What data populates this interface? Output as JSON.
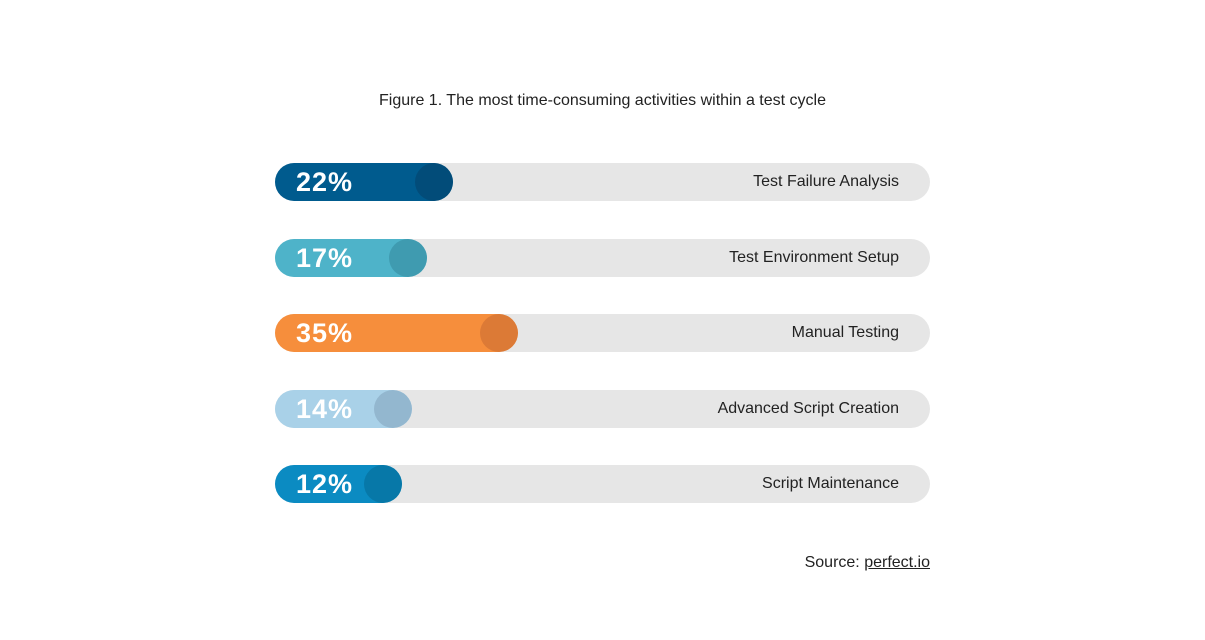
{
  "title": "Figure 1. The most time-consuming activities within a test cycle",
  "chart_data": {
    "type": "bar",
    "orientation": "horizontal",
    "categories": [
      "Test Failure Analysis",
      "Test Environment Setup",
      "Manual Testing",
      "Advanced Script Creation",
      "Script Maintenance"
    ],
    "values": [
      22,
      17,
      35,
      14,
      12
    ],
    "value_labels": [
      "22%",
      "17%",
      "35%",
      "14%",
      "12%"
    ],
    "colors": [
      "#005b8e",
      "#4eb3c9",
      "#f68e3c",
      "#a9d1e8",
      "#0b8bc2"
    ],
    "knob_colors": [
      "#024c79",
      "#3f9bb0",
      "#dc7a36",
      "#93b7cf",
      "#0778a8"
    ],
    "xlim": [
      0,
      100
    ],
    "title": "Figure 1. The most time-consuming activities within a test cycle"
  },
  "source": {
    "prefix": "Source: ",
    "link_text": "perfect.io"
  }
}
